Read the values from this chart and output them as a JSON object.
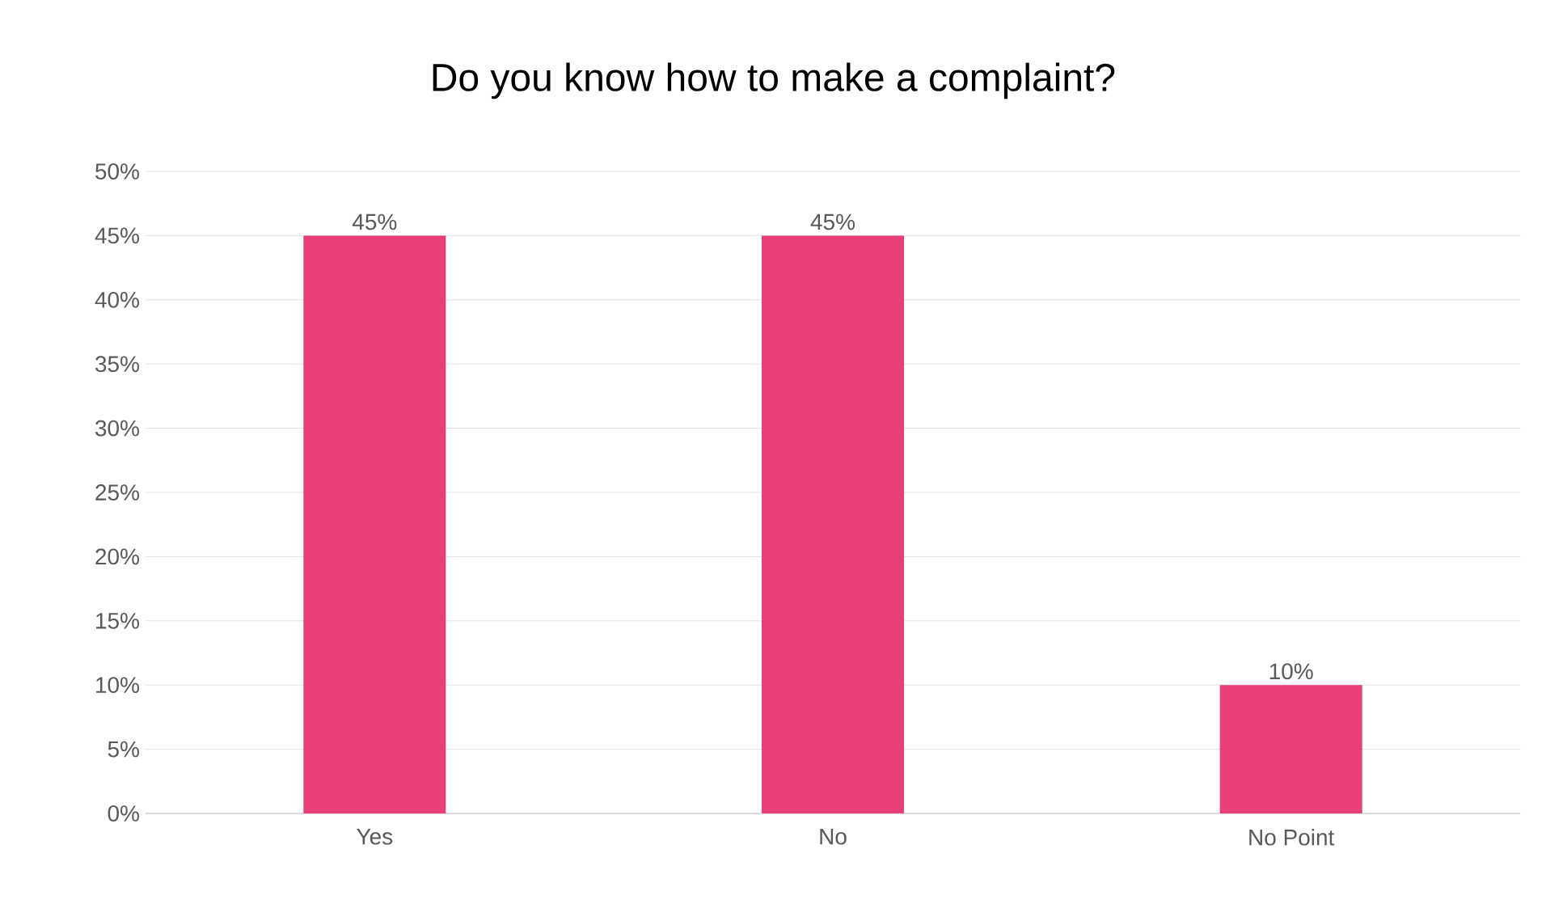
{
  "chart_data": {
    "type": "bar",
    "title": "Do you know how to make a complaint?",
    "categories": [
      "Yes",
      "No",
      "No Point"
    ],
    "values": [
      45,
      45,
      10
    ],
    "value_labels": [
      "45%",
      "45%",
      "10%"
    ],
    "color": "#e83e7a",
    "ylim": [
      0,
      50
    ],
    "yticks": [
      {
        "value": 0,
        "label": "0%"
      },
      {
        "value": 5,
        "label": "5%"
      },
      {
        "value": 10,
        "label": "10%"
      },
      {
        "value": 15,
        "label": "15%"
      },
      {
        "value": 20,
        "label": "20%"
      },
      {
        "value": 25,
        "label": "25%"
      },
      {
        "value": 30,
        "label": "30%"
      },
      {
        "value": 35,
        "label": "35%"
      },
      {
        "value": 40,
        "label": "40%"
      },
      {
        "value": 45,
        "label": "45%"
      },
      {
        "value": 50,
        "label": "50%"
      }
    ],
    "grid": "y"
  }
}
